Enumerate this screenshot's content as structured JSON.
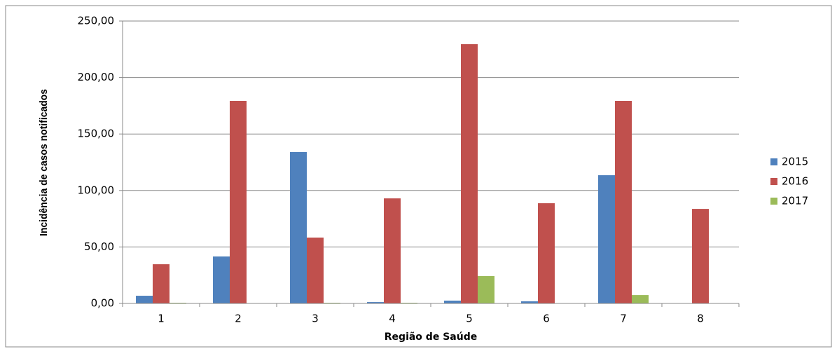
{
  "chart_data": {
    "type": "bar",
    "x_label": "Região de Saúde",
    "y_label": "Incidência de casos notificados",
    "categories": [
      "1",
      "2",
      "3",
      "4",
      "5",
      "6",
      "7",
      "8"
    ],
    "series": [
      {
        "name": "2015",
        "color": "#4f81bd",
        "values": [
          6.8,
          41.6,
          134,
          1.2,
          2.5,
          1.9,
          113.5,
          0
        ]
      },
      {
        "name": "2016",
        "color": "#c0504d",
        "values": [
          34.7,
          179.3,
          58.3,
          93,
          229.5,
          88.7,
          179.3,
          83.7
        ]
      },
      {
        "name": "2017",
        "color": "#9bbb59",
        "values": [
          0.6,
          0.3,
          0.6,
          0.6,
          24.2,
          0,
          7.4,
          0
        ]
      }
    ],
    "ylim": [
      0,
      250
    ],
    "yticks": [
      {
        "value": 0,
        "label": "0,00"
      },
      {
        "value": 50,
        "label": "50,00"
      },
      {
        "value": 100,
        "label": "100,00"
      },
      {
        "value": 150,
        "label": "150,00"
      },
      {
        "value": 200,
        "label": "200,00"
      },
      {
        "value": 250,
        "label": "250,00"
      }
    ],
    "grid": true,
    "legend": "right"
  }
}
